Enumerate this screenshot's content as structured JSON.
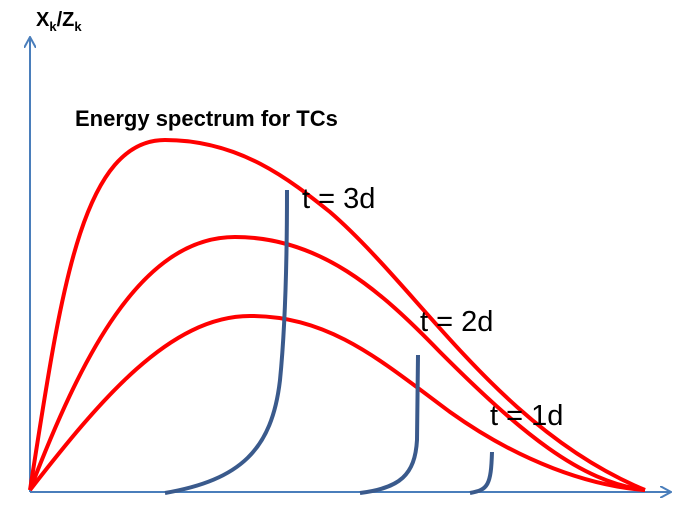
{
  "y_axis_label": [
    "X",
    "k",
    "/Z",
    "k"
  ],
  "title": "Energy spectrum for TCs",
  "curve_labels": [
    "t = 3d",
    "t = 2d",
    "t = 1d"
  ]
}
